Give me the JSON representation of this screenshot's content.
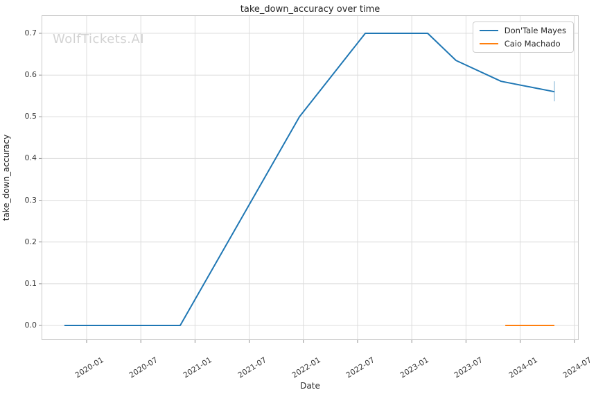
{
  "watermark": "WolfTickets.AI",
  "chart_data": {
    "type": "line",
    "title": "take_down_accuracy over time",
    "xlabel": "Date",
    "ylabel": "take_down_accuracy",
    "grid": true,
    "legend_position": "upper-right",
    "x_axis": {
      "tick_labels": [
        "2020-01",
        "2020-07",
        "2021-01",
        "2021-07",
        "2022-01",
        "2022-07",
        "2023-01",
        "2023-07",
        "2024-01",
        "2024-07"
      ],
      "tick_months": [
        0,
        6,
        12,
        18,
        24,
        30,
        36,
        42,
        48,
        54
      ],
      "range_months": [
        -5.0,
        54.5
      ]
    },
    "y_axis": {
      "ticks": [
        0.0,
        0.1,
        0.2,
        0.3,
        0.4,
        0.5,
        0.6,
        0.7
      ],
      "range": [
        -0.035,
        0.744
      ]
    },
    "series": [
      {
        "name": "Don'Tale Mayes",
        "color": "#1f77b4",
        "points": [
          {
            "date": "2019-10",
            "m": -2.46,
            "y": 0.0
          },
          {
            "date": "2020-11",
            "m": 10.36,
            "y": 0.0
          },
          {
            "date": "2021-12",
            "m": 23.56,
            "y": 0.5
          },
          {
            "date": "2022-08",
            "m": 30.85,
            "y": 0.7
          },
          {
            "date": "2023-02",
            "m": 37.76,
            "y": 0.7
          },
          {
            "date": "2023-06",
            "m": 40.9,
            "y": 0.635
          },
          {
            "date": "2023-11",
            "m": 45.89,
            "y": 0.585
          },
          {
            "date": "2024-04",
            "m": 51.79,
            "y": 0.56,
            "err_low": 0.537,
            "err_high": 0.585
          }
        ]
      },
      {
        "name": "Caio Machado",
        "color": "#ff7f0e",
        "points": [
          {
            "date": "2023-11",
            "m": 46.35,
            "y": 0.0
          },
          {
            "date": "2024-04",
            "m": 51.79,
            "y": 0.0
          }
        ]
      }
    ]
  }
}
